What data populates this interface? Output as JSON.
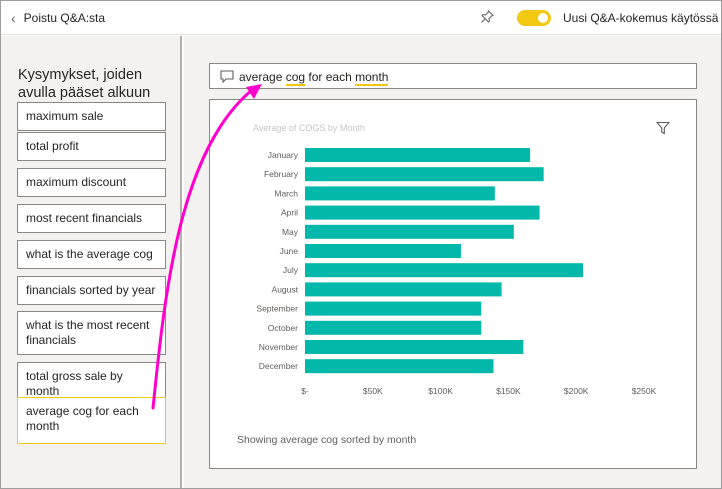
{
  "topbar": {
    "back_label": "Poistu Q&A:sta",
    "toggle_label": "Uusi Q&A-kokemus käytössä",
    "accent_color": "#f2c811"
  },
  "sidebar": {
    "title": "Kysymykset, joiden avulla pääset alkuun",
    "items": [
      {
        "label": "maximum sale"
      },
      {
        "label": "total profit"
      },
      {
        "label": "maximum discount"
      },
      {
        "label": "most recent financials"
      },
      {
        "label": "what is the average cog"
      },
      {
        "label": "financials sorted by year"
      },
      {
        "label": "what is the most recent financials"
      },
      {
        "label": "total gross sale by month"
      },
      {
        "label": "average cog for each month",
        "selected": true
      }
    ]
  },
  "question": {
    "text_parts": [
      "average ",
      "cog",
      " for each ",
      "month"
    ],
    "underlined": [
      1,
      3
    ]
  },
  "visual": {
    "caption": "Showing average cog sorted by month"
  },
  "chart_data": {
    "type": "bar",
    "orientation": "horizontal",
    "title": "Average of COGS by Month",
    "categories": [
      "January",
      "February",
      "March",
      "April",
      "May",
      "June",
      "July",
      "August",
      "September",
      "October",
      "November",
      "December"
    ],
    "values": [
      166000,
      176000,
      140000,
      173000,
      154000,
      115000,
      205000,
      145000,
      130000,
      130000,
      161000,
      139000
    ],
    "xlim": [
      0,
      250000
    ],
    "x_ticks": [
      0,
      50000,
      100000,
      150000,
      200000,
      250000
    ],
    "x_tick_labels": [
      "$-",
      "$50K",
      "$100K",
      "$150K",
      "$200K",
      "$250K"
    ],
    "bar_color": "#01b8aa",
    "grid": false
  }
}
